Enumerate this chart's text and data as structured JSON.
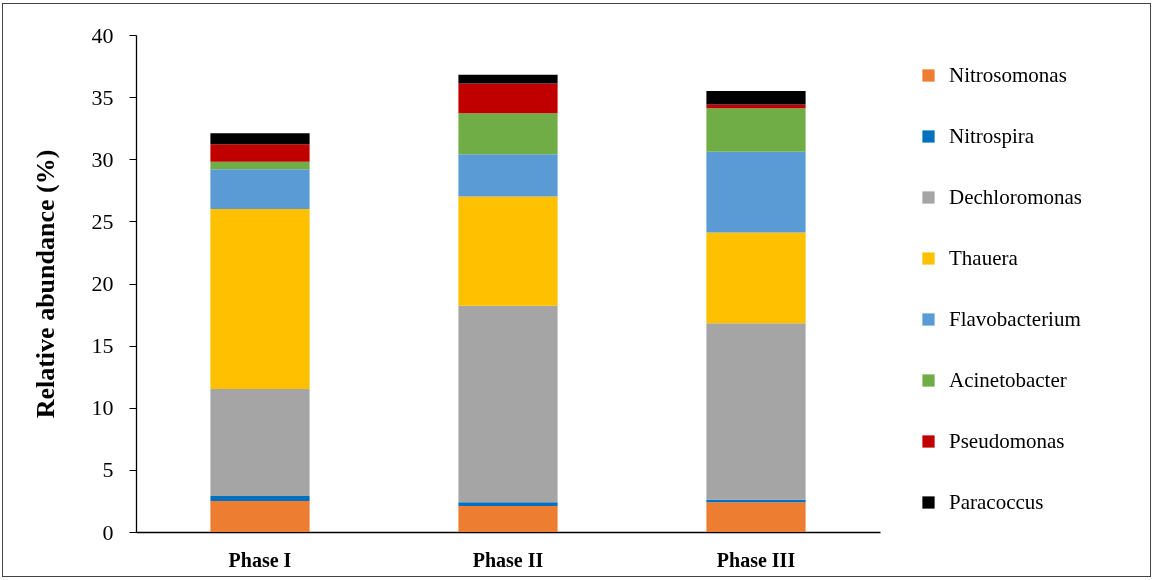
{
  "chart_data": {
    "type": "bar",
    "stacked": true,
    "ylabel": "Relative abundance (%)",
    "categories": [
      "Phase I",
      "Phase II",
      "Phase III"
    ],
    "ylim": [
      0,
      40
    ],
    "yticks": [
      0,
      5,
      10,
      15,
      20,
      25,
      30,
      35,
      40
    ],
    "legend": "right",
    "series": [
      {
        "name": "Nitrosomonas",
        "color": "#ed7d31",
        "values": [
          2.5,
          2.1,
          2.4
        ]
      },
      {
        "name": "Nitrospira",
        "color": "#0070c0",
        "values": [
          0.4,
          0.3,
          0.2
        ]
      },
      {
        "name": "Dechloromonas",
        "color": "#a5a5a5",
        "values": [
          8.6,
          15.8,
          14.2
        ]
      },
      {
        "name": "Thauera",
        "color": "#ffc000",
        "values": [
          14.5,
          8.8,
          7.3
        ]
      },
      {
        "name": "Flavobacterium",
        "color": "#5b9bd5",
        "values": [
          3.2,
          3.4,
          6.5
        ]
      },
      {
        "name": "Acinetobacter",
        "color": "#70ad47",
        "values": [
          0.6,
          3.3,
          3.5
        ]
      },
      {
        "name": "Pseudomonas",
        "color": "#c00000",
        "values": [
          1.4,
          2.4,
          0.3
        ]
      },
      {
        "name": "Paracoccus",
        "color": "#000000",
        "values": [
          0.9,
          0.7,
          1.1
        ]
      }
    ]
  }
}
